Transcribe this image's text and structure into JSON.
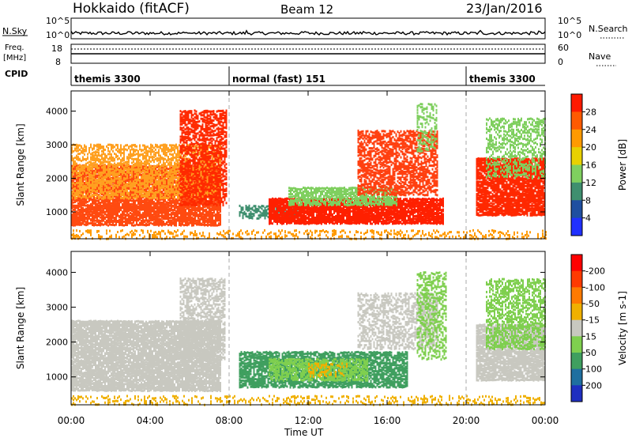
{
  "header": {
    "radar": "Hokkaido (fitACF)",
    "beam": "Beam 12",
    "date": "23/Jan/2016"
  },
  "top_panels": {
    "nsky_label": "N.Sky",
    "nsky_ticks": [
      "10^5",
      "10^0"
    ],
    "nsearch_label": "N.Search",
    "nsearch_ticks": [
      "10^5",
      "10^0"
    ],
    "freq_label": "Freq.",
    "freq_unit": "[MHz]",
    "freq_ticks": [
      "18",
      "8"
    ],
    "nave_label": "Nave",
    "nave_ticks": [
      "60",
      "0"
    ],
    "cpid_label": "CPID"
  },
  "cpid_segments": [
    {
      "label": "themis 3300",
      "start": 0,
      "end": 8
    },
    {
      "label": "normal (fast) 151",
      "start": 8,
      "end": 20
    },
    {
      "label": "themis 3300",
      "start": 20,
      "end": 24
    }
  ],
  "x_axis": {
    "label": "Time UT",
    "ticks": [
      "00:00",
      "04:00",
      "08:00",
      "12:00",
      "16:00",
      "20:00",
      "00:00"
    ],
    "range_hours": [
      0,
      24
    ]
  },
  "chart_data": [
    {
      "type": "heatmap",
      "panel": "power",
      "ylabel": "Slant Range [km]",
      "ylim": [
        200,
        4600
      ],
      "yticks": [
        "1000",
        "2000",
        "3000",
        "4000"
      ],
      "colorbar": {
        "label": "Power [dB]",
        "ticks": [
          "4",
          "8",
          "12",
          "16",
          "20",
          "24",
          "28"
        ],
        "range": [
          0,
          32
        ],
        "colors": [
          "#2030ff",
          "#1f4fa0",
          "#3f8f6f",
          "#7fcf5f",
          "#e8d000",
          "#ff9a00",
          "#ff5a00",
          "#ff1a00"
        ]
      },
      "bands": [
        {
          "t0": 0.0,
          "t1": 7.6,
          "r0": 600,
          "r1": 2400,
          "color": "#ff4a10",
          "density": 0.85
        },
        {
          "t0": 0.0,
          "t1": 7.6,
          "r0": 1400,
          "r1": 3000,
          "color": "#ffa020",
          "density": 0.55
        },
        {
          "t0": 5.5,
          "t1": 7.9,
          "r0": 1200,
          "r1": 4000,
          "color": "#ff2a00",
          "density": 0.6
        },
        {
          "t0": 8.5,
          "t1": 11.5,
          "r0": 800,
          "r1": 1200,
          "color": "#3f8f6f",
          "density": 0.5
        },
        {
          "t0": 10.0,
          "t1": 18.8,
          "r0": 650,
          "r1": 1400,
          "color": "#ff2000",
          "density": 0.9
        },
        {
          "t0": 11.0,
          "t1": 16.5,
          "r0": 1200,
          "r1": 1700,
          "color": "#7fcf5f",
          "density": 0.7
        },
        {
          "t0": 14.5,
          "t1": 18.5,
          "r0": 1500,
          "r1": 3400,
          "color": "#ff4010",
          "density": 0.6
        },
        {
          "t0": 17.5,
          "t1": 18.5,
          "r0": 2800,
          "r1": 4200,
          "color": "#7fcf5f",
          "density": 0.35
        },
        {
          "t0": 20.5,
          "t1": 24.0,
          "r0": 900,
          "r1": 2600,
          "color": "#ff2800",
          "density": 0.85
        },
        {
          "t0": 21.0,
          "t1": 24.0,
          "r0": 2000,
          "r1": 3800,
          "color": "#7fcf5f",
          "density": 0.4
        },
        {
          "t0": 0.0,
          "t1": 24.0,
          "r0": 200,
          "r1": 450,
          "color": "#ff9a00",
          "density": 0.25
        }
      ]
    },
    {
      "type": "heatmap",
      "panel": "velocity",
      "ylabel": "Slant Range [km]",
      "ylim": [
        200,
        4600
      ],
      "yticks": [
        "1000",
        "2000",
        "3000",
        "4000"
      ],
      "colorbar": {
        "label": "Velocity [m s-1]",
        "ticks": [
          "200",
          "100",
          "50",
          "15",
          "-15",
          "-50",
          "-100",
          "-200"
        ],
        "range": [
          -250,
          250
        ],
        "colors": [
          "#1f2fc0",
          "#1f6fa0",
          "#3f9f5f",
          "#7fcf4f",
          "#c8c8c0",
          "#f0b000",
          "#ff7a00",
          "#ff3a00",
          "#ff0000"
        ]
      },
      "bands": [
        {
          "t0": 0.0,
          "t1": 7.6,
          "r0": 600,
          "r1": 2600,
          "color": "#c8c8c0",
          "density": 0.9
        },
        {
          "t0": 5.5,
          "t1": 7.8,
          "r0": 1500,
          "r1": 3800,
          "color": "#c8c8c0",
          "density": 0.55
        },
        {
          "t0": 8.5,
          "t1": 17.0,
          "r0": 700,
          "r1": 1700,
          "color": "#3f9f5f",
          "density": 0.75
        },
        {
          "t0": 10.0,
          "t1": 15.0,
          "r0": 900,
          "r1": 1500,
          "color": "#7fcf4f",
          "density": 0.6
        },
        {
          "t0": 12.0,
          "t1": 14.0,
          "r0": 1000,
          "r1": 1400,
          "color": "#f0b000",
          "density": 0.35
        },
        {
          "t0": 14.5,
          "t1": 18.5,
          "r0": 1800,
          "r1": 3400,
          "color": "#c8c8c0",
          "density": 0.5
        },
        {
          "t0": 17.5,
          "t1": 19.0,
          "r0": 1500,
          "r1": 4000,
          "color": "#7fcf4f",
          "density": 0.4
        },
        {
          "t0": 20.5,
          "t1": 24.0,
          "r0": 900,
          "r1": 2500,
          "color": "#c8c8c0",
          "density": 0.85
        },
        {
          "t0": 21.0,
          "t1": 24.0,
          "r0": 1800,
          "r1": 3800,
          "color": "#7fcf4f",
          "density": 0.5
        },
        {
          "t0": 0.0,
          "t1": 24.0,
          "r0": 200,
          "r1": 450,
          "color": "#f0b000",
          "density": 0.25
        }
      ]
    }
  ]
}
